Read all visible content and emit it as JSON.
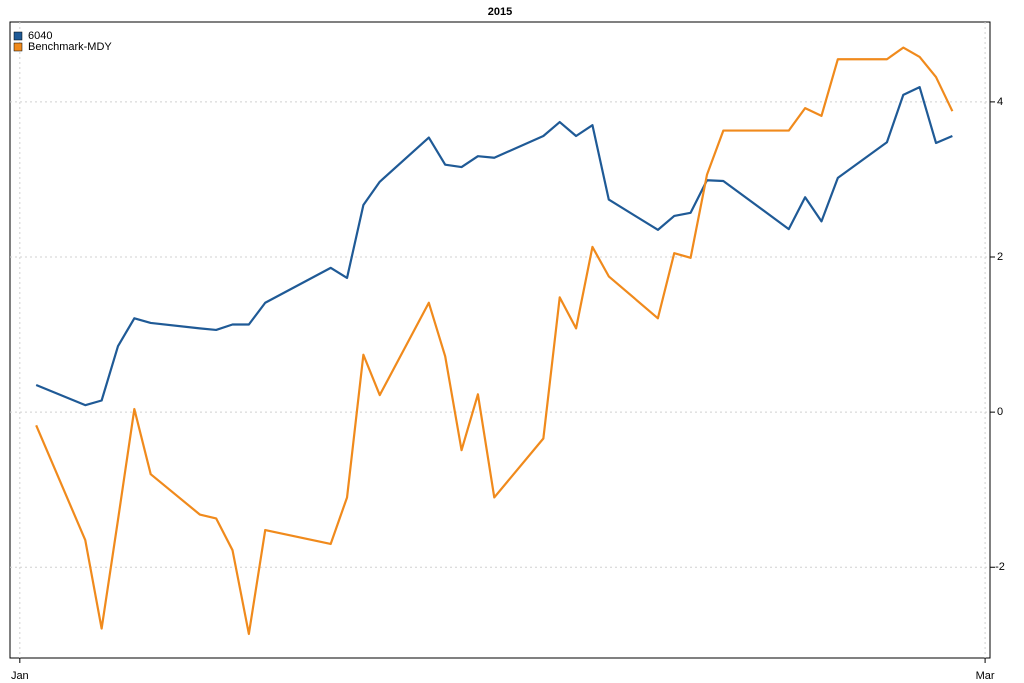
{
  "chart_data": {
    "type": "line",
    "title": "2015",
    "x": [
      2,
      5,
      6,
      7,
      8,
      9,
      12,
      13,
      14,
      15,
      16,
      20,
      21,
      22,
      23,
      26,
      27,
      28,
      29,
      30,
      33,
      34,
      35,
      36,
      37,
      40,
      41,
      42,
      43,
      44,
      48,
      49,
      50,
      51,
      54,
      55,
      56,
      57,
      58
    ],
    "xlim": [
      0.4,
      60.3
    ],
    "xticks": [
      {
        "value": 1,
        "label": "Jan"
      },
      {
        "value": 60,
        "label": "Mar"
      }
    ],
    "ylim": [
      -3.17,
      5.03
    ],
    "yticks": [
      -2,
      0,
      2,
      4
    ],
    "grid": true,
    "legend": "topleft",
    "series": [
      {
        "name": "6040",
        "color": "#1f5a96",
        "values": [
          0.35,
          0.09,
          0.15,
          0.85,
          1.21,
          1.15,
          1.08,
          1.06,
          1.13,
          1.13,
          1.41,
          1.86,
          1.73,
          2.67,
          2.97,
          3.54,
          3.19,
          3.16,
          3.3,
          3.28,
          3.56,
          3.74,
          3.56,
          3.7,
          2.74,
          2.35,
          2.53,
          2.57,
          2.99,
          2.98,
          2.36,
          2.77,
          2.46,
          3.02,
          3.48,
          4.09,
          4.19,
          3.47,
          3.56
        ]
      },
      {
        "name": "Benchmark-MDY",
        "color": "#f08a1c",
        "values": [
          -0.17,
          -1.65,
          -2.79,
          -1.39,
          0.04,
          -0.8,
          -1.32,
          -1.37,
          -1.78,
          -2.86,
          -1.52,
          -1.7,
          -1.1,
          0.74,
          0.22,
          1.41,
          0.72,
          -0.49,
          0.23,
          -1.1,
          -0.34,
          1.48,
          1.08,
          2.13,
          1.75,
          1.21,
          2.05,
          1.99,
          3.06,
          3.63,
          3.63,
          3.92,
          3.82,
          4.55,
          4.55,
          4.7,
          4.58,
          4.32,
          3.88
        ]
      }
    ]
  }
}
